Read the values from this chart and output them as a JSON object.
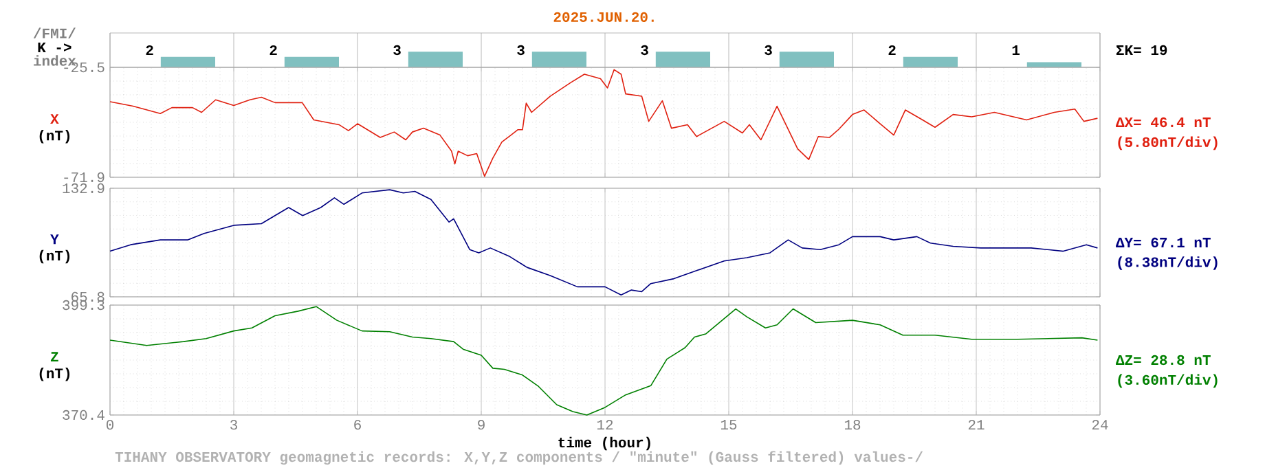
{
  "chart_data": [
    {
      "type": "bar",
      "title": "2025.JUN.20.",
      "ylabel": "K ->",
      "categories": [
        null,
        null,
        null,
        null,
        null,
        null,
        null,
        null
      ],
      "values": [
        2,
        2,
        3,
        3,
        3,
        3,
        2,
        1
      ],
      "color": "#80c0c0",
      "data_labels": true,
      "grid": "x",
      "tick_labels": false,
      "annotations": [
        "/FMI/",
        "index",
        "ΣK= 19"
      ]
    },
    {
      "type": "line",
      "ylabel": "X",
      "xlim": [
        0,
        24
      ],
      "xticks": [
        0,
        3,
        6,
        9,
        12,
        15,
        18,
        21,
        24
      ],
      "ylim": [
        -71.9,
        -25.5
      ],
      "yticks": [
        -71.9,
        -25.5
      ],
      "grid": true,
      "tick_labels": "y",
      "annotations": [
        "(nT)",
        "ΔX= 46.4 nT",
        "(5.80nT/div)"
      ],
      "x": [
        0,
        0.56,
        1.22,
        1.5,
        2.0,
        2.22,
        2.56,
        3.0,
        3.39,
        3.67,
        4.0,
        4.66,
        4.94,
        5.55,
        5.78,
        6.0,
        6.55,
        6.89,
        7.17,
        7.33,
        7.6,
        8.0,
        8.28,
        8.36,
        8.44,
        8.67,
        8.89,
        9.08,
        9.28,
        9.5,
        9.72,
        9.89,
        10.0,
        10.09,
        10.22,
        10.67,
        11.17,
        11.5,
        11.89,
        12.06,
        12.22,
        12.39,
        12.5,
        12.89,
        13.06,
        13.39,
        13.61,
        14.0,
        14.22,
        14.89,
        15.33,
        15.5,
        15.78,
        16.17,
        16.67,
        16.94,
        17.17,
        17.44,
        17.67,
        18.0,
        18.28,
        18.67,
        19.0,
        19.28,
        19.67,
        20.0,
        20.44,
        20.89,
        21.44,
        22.22,
        22.89,
        23.39,
        23.61,
        23.94
      ],
      "series": [
        {
          "color": "#e02010",
          "values": [
            -40.0,
            -41.9,
            -45.0,
            -42.5,
            -42.5,
            -44.5,
            -39.2,
            -41.6,
            -39.2,
            -38.1,
            -40.4,
            -40.4,
            -47.7,
            -49.7,
            -52.2,
            -49.3,
            -55.1,
            -52.8,
            -56.1,
            -52.8,
            -51.2,
            -54.1,
            -60.9,
            -66.3,
            -60.9,
            -62.8,
            -61.9,
            -71.5,
            -63.8,
            -57.0,
            -54.1,
            -51.8,
            -51.8,
            -40.6,
            -44.5,
            -37.7,
            -31.9,
            -28.4,
            -30.3,
            -34.2,
            -26.5,
            -28.4,
            -36.7,
            -37.7,
            -48.3,
            -39.6,
            -51.2,
            -49.7,
            -54.7,
            -48.3,
            -53.2,
            -49.7,
            -56.1,
            -41.9,
            -59.9,
            -64.4,
            -54.7,
            -55.1,
            -51.6,
            -45.4,
            -43.5,
            -49.3,
            -54.1,
            -43.5,
            -47.4,
            -50.8,
            -45.4,
            -46.4,
            -44.5,
            -47.7,
            -44.5,
            -43.1,
            -48.3,
            -47.0
          ]
        }
      ]
    },
    {
      "type": "line",
      "ylabel": "Y",
      "xlim": [
        0,
        24
      ],
      "xticks": [
        0,
        3,
        6,
        9,
        12,
        15,
        18,
        21,
        24
      ],
      "ylim": [
        65.8,
        132.9
      ],
      "yticks": [
        65.8,
        132.9
      ],
      "grid": true,
      "tick_labels": "y",
      "annotations": [
        "(nT)",
        "ΔY= 67.1 nT",
        "(8.38nT/div)"
      ],
      "x": [
        0,
        0.5,
        1.22,
        1.89,
        2.28,
        3.0,
        3.67,
        4.33,
        4.67,
        5.11,
        5.44,
        5.67,
        6.11,
        6.78,
        7.11,
        7.39,
        7.78,
        8.22,
        8.33,
        8.72,
        8.94,
        9.22,
        9.67,
        10.11,
        10.67,
        11.33,
        12.0,
        12.39,
        12.64,
        12.89,
        13.11,
        13.67,
        14.22,
        14.89,
        15.44,
        16.0,
        16.44,
        16.78,
        17.22,
        17.67,
        18.0,
        18.67,
        19.0,
        19.56,
        19.89,
        20.44,
        21.11,
        22.33,
        23.11,
        23.67,
        23.94
      ],
      "series": [
        {
          "color": "#000080",
          "values": [
            94,
            98,
            101,
            101,
            105,
            110,
            111,
            121,
            116,
            121,
            127,
            123,
            130,
            132,
            130,
            131,
            126,
            112,
            114,
            95,
            93,
            96,
            91,
            84,
            79,
            72,
            72,
            67,
            70,
            69,
            74,
            77,
            82,
            88,
            90,
            93,
            101,
            96,
            95,
            98,
            103,
            103,
            101,
            103,
            99,
            97,
            96,
            96,
            94,
            98,
            96
          ]
        }
      ]
    },
    {
      "type": "line",
      "ylabel": "Z",
      "xlabel": "time (hour)",
      "xlim": [
        0,
        24
      ],
      "xticks": [
        0,
        3,
        6,
        9,
        12,
        15,
        18,
        21,
        24
      ],
      "ylim": [
        370.4,
        399.3
      ],
      "yticks": [
        370.4,
        399.3
      ],
      "grid": true,
      "annotations": [
        "(nT)",
        "ΔZ= 28.8 nT",
        "(3.60nT/div)",
        "TIHANY OBSERVATORY   geomagnetic records:  X,Y,Z  components   / \"minute\" (Gauss filtered) values-/"
      ],
      "x": [
        0,
        0.89,
        1.78,
        2.33,
        3.0,
        3.44,
        4.0,
        4.56,
        5.0,
        5.5,
        6.11,
        6.78,
        7.33,
        7.78,
        8.33,
        8.56,
        9.0,
        9.28,
        9.56,
        10.0,
        10.39,
        10.83,
        11.22,
        11.56,
        12.0,
        12.5,
        13.11,
        13.5,
        13.94,
        14.17,
        14.44,
        15.17,
        15.44,
        15.89,
        16.17,
        16.56,
        17.11,
        18.0,
        18.67,
        19.22,
        20.0,
        20.89,
        22.0,
        23.56,
        23.94
      ],
      "series": [
        {
          "color": "#008000",
          "values": [
            390.1,
            388.7,
            389.7,
            390.5,
            392.5,
            393.3,
            396.5,
            397.7,
            398.9,
            395.3,
            392.5,
            392.3,
            390.9,
            390.5,
            389.7,
            387.7,
            386.1,
            382.7,
            382.4,
            380.9,
            377.9,
            373.1,
            371.3,
            370.4,
            372.4,
            375.7,
            378.1,
            385.1,
            388.1,
            390.9,
            391.7,
            398.3,
            396.2,
            393.3,
            394.1,
            398.3,
            394.7,
            395.3,
            394.1,
            391.4,
            391.4,
            390.3,
            390.3,
            390.7,
            390.1
          ]
        }
      ]
    }
  ]
}
